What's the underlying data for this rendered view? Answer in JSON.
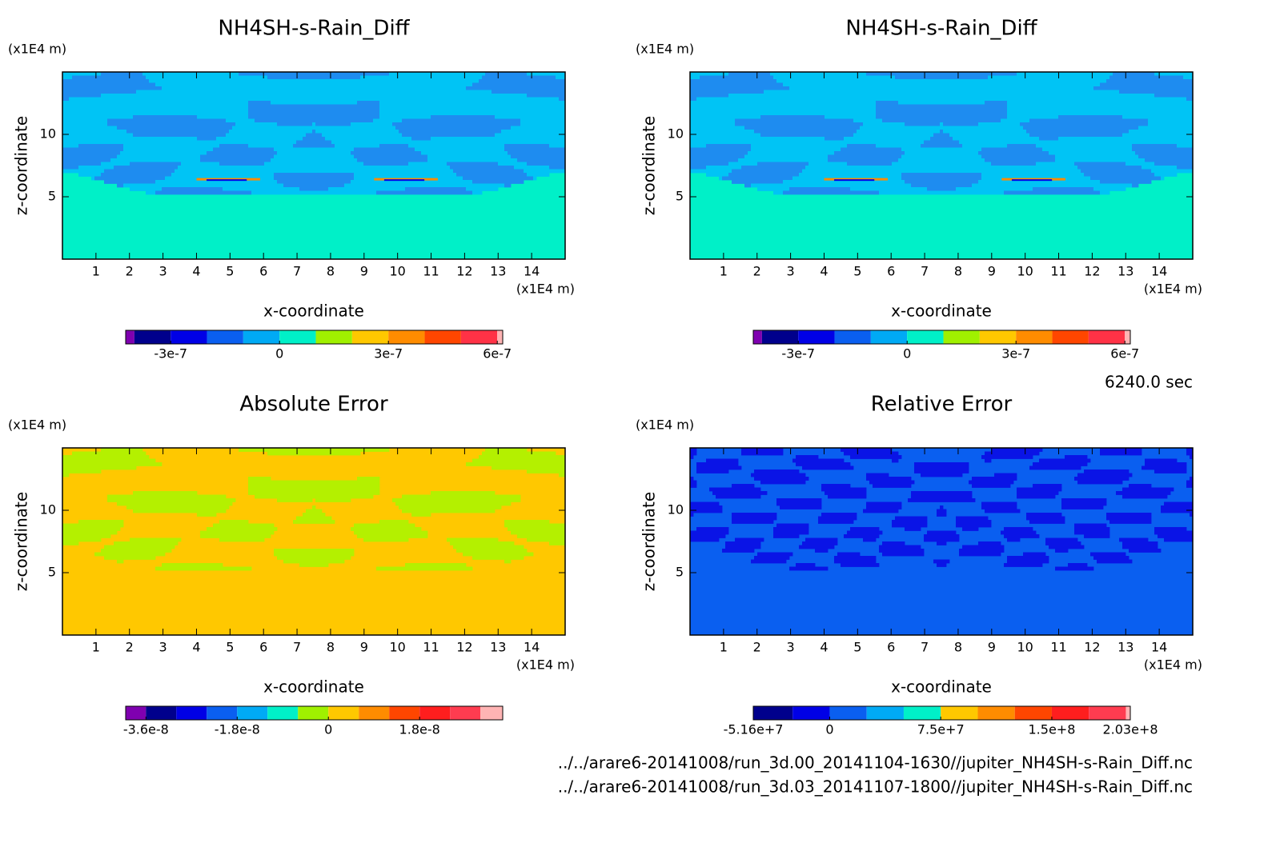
{
  "chart_data": [
    {
      "type": "contour",
      "title": "NH4SH-s-Rain_Diff",
      "xlabel": "x-coordinate",
      "ylabel": "z-coordinate",
      "x_unit": "(x1E4 m)",
      "y_unit": "(x1E4 m)",
      "xlim": [
        0,
        15
      ],
      "ylim": [
        0,
        15
      ],
      "xticks": [
        1,
        2,
        3,
        4,
        5,
        6,
        7,
        8,
        9,
        10,
        11,
        12,
        13,
        14
      ],
      "yticks": [
        5,
        10
      ],
      "colorbar": {
        "lim": [
          -4.24e-07,
          6.15e-07
        ],
        "levels": [
          -4e-07,
          -3e-07,
          -2e-07,
          -1e-07,
          0,
          1e-07,
          2e-07,
          3e-07,
          4e-07,
          5e-07,
          6e-07
        ],
        "colors": [
          "#7f00b0",
          "#00008c",
          "#0000e6",
          "#0a5ff0",
          "#00aaf5",
          "#00f0c8",
          "#a0f000",
          "#ffc800",
          "#ff8c00",
          "#ff4600",
          "#ff3246",
          "#ffb4b4"
        ],
        "ticks": [
          -3e-07,
          0,
          3e-07,
          6e-07
        ]
      }
    },
    {
      "type": "contour",
      "title": "NH4SH-s-Rain_Diff",
      "xlabel": "x-coordinate",
      "ylabel": "z-coordinate",
      "x_unit": "(x1E4 m)",
      "y_unit": "(x1E4 m)",
      "xlim": [
        0,
        15
      ],
      "ylim": [
        0,
        15
      ],
      "xticks": [
        1,
        2,
        3,
        4,
        5,
        6,
        7,
        8,
        9,
        10,
        11,
        12,
        13,
        14
      ],
      "yticks": [
        5,
        10
      ],
      "colorbar": {
        "lim": [
          -4.24e-07,
          6.15e-07
        ],
        "levels": [
          -4e-07,
          -3e-07,
          -2e-07,
          -1e-07,
          0,
          1e-07,
          2e-07,
          3e-07,
          4e-07,
          5e-07,
          6e-07
        ],
        "colors": [
          "#7f00b0",
          "#00008c",
          "#0000e6",
          "#0a5ff0",
          "#00aaf5",
          "#00f0c8",
          "#a0f000",
          "#ffc800",
          "#ff8c00",
          "#ff4600",
          "#ff3246",
          "#ffb4b4"
        ],
        "ticks": [
          -3e-07,
          0,
          3e-07,
          6e-07
        ]
      }
    },
    {
      "type": "contour",
      "title": "Absolute Error",
      "xlabel": "x-coordinate",
      "ylabel": "z-coordinate",
      "x_unit": "(x1E4 m)",
      "y_unit": "(x1E4 m)",
      "xlim": [
        0,
        15
      ],
      "ylim": [
        0,
        15
      ],
      "xticks": [
        1,
        2,
        3,
        4,
        5,
        6,
        7,
        8,
        9,
        10,
        11,
        12,
        13,
        14
      ],
      "yticks": [
        5,
        10
      ],
      "colorbar": {
        "lim": [
          -4e-08,
          3.44e-08
        ],
        "levels": [
          -3.6e-08,
          -3e-08,
          -2.4e-08,
          -1.8e-08,
          -1.2e-08,
          -6e-09,
          0,
          6e-09,
          1.2e-08,
          1.8e-08,
          2.4e-08,
          3e-08
        ],
        "colors": [
          "#7f00b0",
          "#00008c",
          "#0000e6",
          "#0a5ff0",
          "#00aaf5",
          "#00f0c8",
          "#a0f000",
          "#ffc800",
          "#ff8c00",
          "#ff4600",
          "#ff1e1e",
          "#ff3c50",
          "#ffb4b4"
        ],
        "ticks": [
          -3.6e-08,
          -1.8e-08,
          0,
          1.8e-08
        ]
      }
    },
    {
      "type": "contour",
      "title": "Relative Error",
      "xlabel": "x-coordinate",
      "ylabel": "z-coordinate",
      "x_unit": "(x1E4 m)",
      "y_unit": "(x1E4 m)",
      "xlim": [
        0,
        15
      ],
      "ylim": [
        0,
        15
      ],
      "xticks": [
        1,
        2,
        3,
        4,
        5,
        6,
        7,
        8,
        9,
        10,
        11,
        12,
        13,
        14
      ],
      "yticks": [
        5,
        10
      ],
      "colorbar": {
        "lim": [
          -51600000,
          203000000
        ],
        "levels": [
          -25000000,
          0,
          25000000,
          50000000,
          75000000,
          100000000,
          125000000,
          150000000,
          175000000,
          200000000
        ],
        "colors": [
          "#00008c",
          "#0000e6",
          "#0a5ff0",
          "#00aaf5",
          "#00f0c8",
          "#ffc800",
          "#ff8c00",
          "#ff4600",
          "#ff1e1e",
          "#ff3c50",
          "#ffb4b4"
        ],
        "ticks": [
          {
            "value": -51600000,
            "label": "-5.16e+7"
          },
          0,
          {
            "value": 75000000,
            "label": "7.5e+7"
          },
          {
            "value": 150000000,
            "label": "1.5e+8"
          },
          {
            "value": 203000000,
            "label": "2.03e+8"
          }
        ]
      }
    }
  ],
  "time_label": "6240.0 sec",
  "files": [
    "../../arare6-20141008/run_3d.00_20141104-1630//jupiter_NH4SH-s-Rain_Diff.nc",
    "../../arare6-20141008/run_3d.03_20141107-1800//jupiter_NH4SH-s-Rain_Diff.nc"
  ]
}
